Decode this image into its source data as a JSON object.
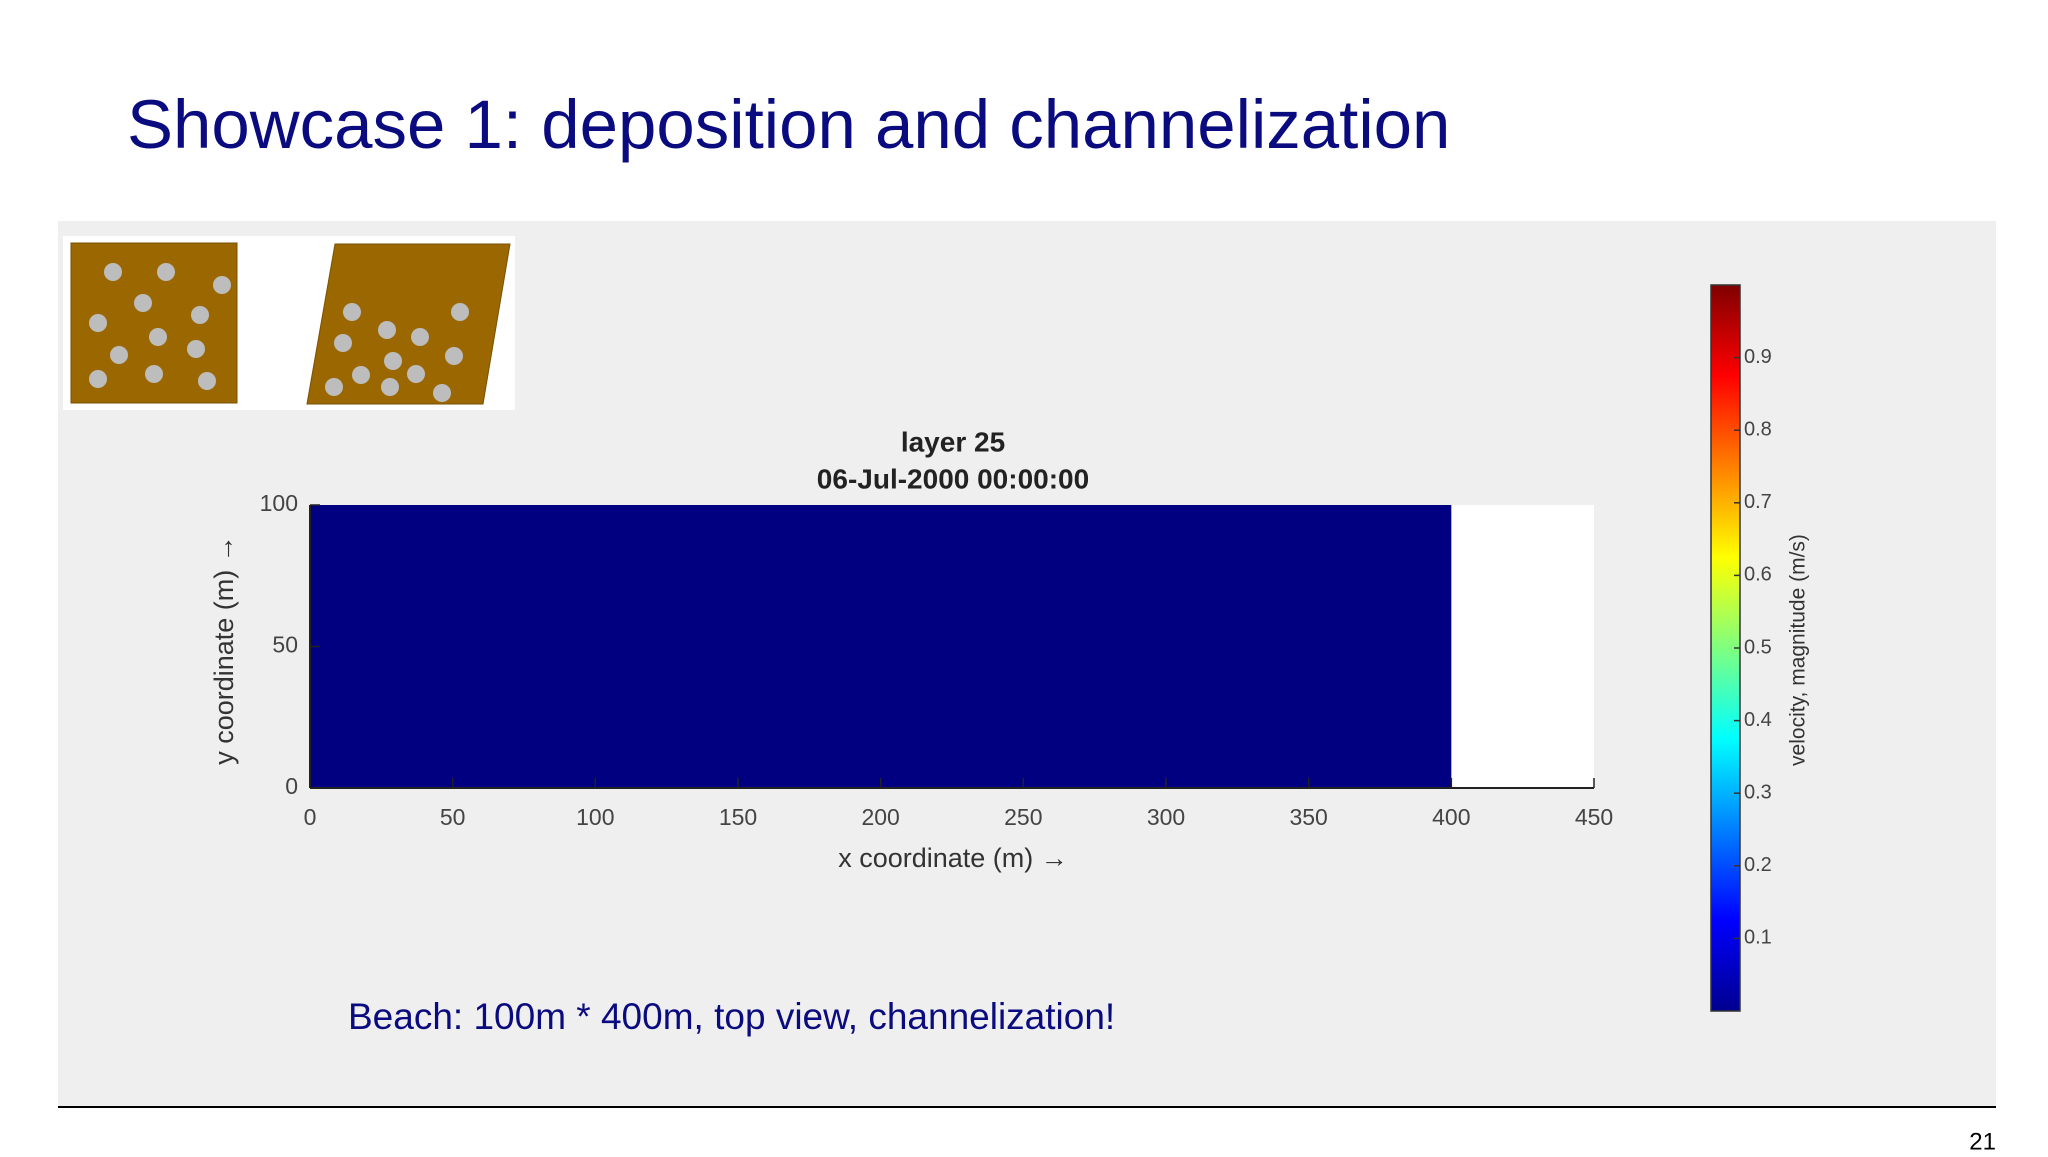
{
  "header": {
    "title": "Showcase 1: deposition and channelization"
  },
  "caption": "Beach: 100m * 400m, top view, channelization!",
  "page_number": "21",
  "chart_data": {
    "type": "heatmap",
    "title": "layer 25",
    "subtitle": "06-Jul-2000 00:00:00",
    "x_label": "x coordinate (m) →",
    "y_label": "y coordinate (m) →",
    "x": [
      0,
      400
    ],
    "y": [
      0,
      100
    ],
    "values": [
      [
        0
      ]
    ],
    "xlim": [
      0,
      450
    ],
    "xticks": [
      0,
      50,
      100,
      150,
      200,
      250,
      300,
      350,
      400,
      450
    ],
    "ylim": [
      0,
      100
    ],
    "yticks": [
      0,
      50,
      100
    ],
    "colormap": "jet",
    "clim": [
      0,
      1
    ],
    "cticks": [
      0.1,
      0.2,
      0.3,
      0.4,
      0.5,
      0.6,
      0.7,
      0.8,
      0.9
    ],
    "colorbar_label": "velocity, magnitude (m/s)"
  }
}
